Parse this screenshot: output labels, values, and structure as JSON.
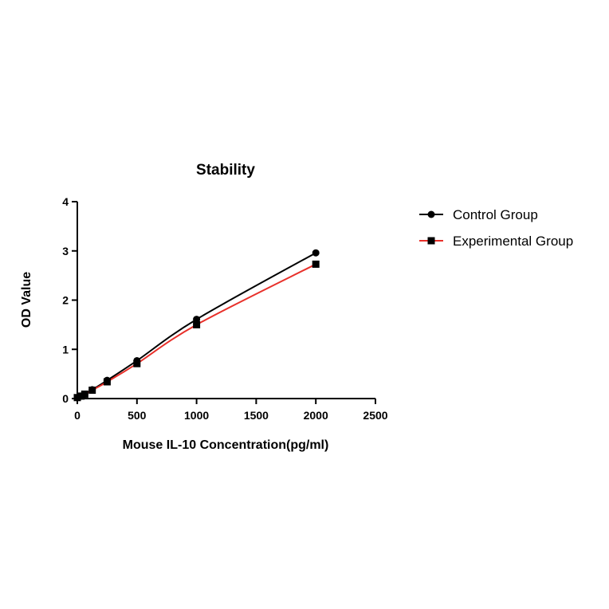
{
  "chart_data": {
    "type": "scatter",
    "title": "Stability",
    "xlabel": "Mouse IL-10 Concentration(pg/ml)",
    "ylabel": "OD Value",
    "xlim": [
      0,
      2500
    ],
    "ylim": [
      0,
      4
    ],
    "xticks": [
      "0",
      "500",
      "1000",
      "1500",
      "2000",
      "2500"
    ],
    "yticks": [
      "0",
      "1",
      "2",
      "3",
      "4"
    ],
    "legend_position": "right",
    "grid": false,
    "series": [
      {
        "name": "Control Group",
        "color": "#000000",
        "marker": "circle",
        "x": [
          0,
          31.25,
          62.5,
          125,
          250,
          500,
          1000,
          2000
        ],
        "y": [
          0.02,
          0.05,
          0.09,
          0.18,
          0.37,
          0.77,
          1.61,
          2.96
        ]
      },
      {
        "name": "Experimental Group",
        "color": "#e8302a",
        "marker": "square",
        "x": [
          0,
          31.25,
          62.5,
          125,
          250,
          500,
          1000,
          2000
        ],
        "y": [
          0.02,
          0.05,
          0.09,
          0.17,
          0.34,
          0.71,
          1.5,
          2.73
        ]
      }
    ]
  }
}
